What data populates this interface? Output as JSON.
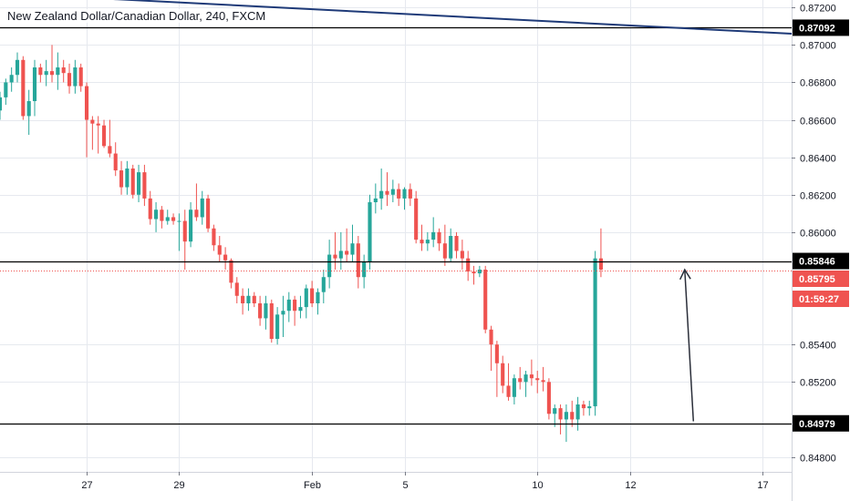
{
  "header": {
    "title": "New Zealand Dollar/Canadian Dollar, 240, FXCM"
  },
  "colors": {
    "bull": "#26a69a",
    "bear": "#ef5350",
    "grid": "#e6e9ef",
    "trendline": "#1e3a78",
    "arrow": "#2a2e39",
    "current": "#ef5350"
  },
  "chart_data": {
    "type": "candlestick",
    "y_range": [
      0.8472,
      0.8724
    ],
    "x_range": [
      0,
      137
    ],
    "y_ticks": [
      {
        "value": 0.872,
        "label": "0.87200"
      },
      {
        "value": 0.87,
        "label": "0.87000"
      },
      {
        "value": 0.868,
        "label": "0.86800"
      },
      {
        "value": 0.866,
        "label": "0.86600"
      },
      {
        "value": 0.864,
        "label": "0.86400"
      },
      {
        "value": 0.862,
        "label": "0.86200"
      },
      {
        "value": 0.86,
        "label": "0.86000"
      },
      {
        "value": 0.854,
        "label": "0.85400"
      },
      {
        "value": 0.852,
        "label": "0.85200"
      },
      {
        "value": 0.848,
        "label": "0.84800"
      }
    ],
    "x_ticks": [
      {
        "index": 15,
        "label": "27"
      },
      {
        "index": 31,
        "label": "29"
      },
      {
        "index": 54,
        "label": "Feb"
      },
      {
        "index": 70,
        "label": "5"
      },
      {
        "index": 93,
        "label": "10"
      },
      {
        "index": 109,
        "label": "12"
      },
      {
        "index": 132,
        "label": "17"
      }
    ],
    "levels": [
      {
        "value": 0.87092,
        "label": "0.87092"
      },
      {
        "value": 0.85846,
        "label": "0.85846"
      },
      {
        "value": 0.84979,
        "label": "0.84979"
      }
    ],
    "current_price": {
      "value": 0.85795,
      "label": "0.85795",
      "countdown": "01:59:27"
    },
    "trendline": {
      "x1": 10,
      "y1": 0.8726,
      "x2": 137,
      "y2": 0.8706
    },
    "arrow": {
      "x1": 120,
      "y1": 0.8499,
      "x2": 118.5,
      "y2": 0.858
    },
    "candles": [
      [
        0.8665,
        0.8675,
        0.866,
        0.8672
      ],
      [
        0.8672,
        0.8682,
        0.8668,
        0.868
      ],
      [
        0.868,
        0.8688,
        0.8675,
        0.8684
      ],
      [
        0.8684,
        0.8696,
        0.868,
        0.8692
      ],
      [
        0.8692,
        0.8694,
        0.866,
        0.8662
      ],
      [
        0.8662,
        0.8676,
        0.8652,
        0.867
      ],
      [
        0.867,
        0.8692,
        0.8662,
        0.8688
      ],
      [
        0.8688,
        0.869,
        0.868,
        0.8684
      ],
      [
        0.8684,
        0.8692,
        0.8678,
        0.8686
      ],
      [
        0.8686,
        0.87,
        0.868,
        0.8684
      ],
      [
        0.8684,
        0.8696,
        0.8676,
        0.8688
      ],
      [
        0.8688,
        0.8692,
        0.868,
        0.8685
      ],
      [
        0.8685,
        0.869,
        0.8674,
        0.8678
      ],
      [
        0.8678,
        0.8692,
        0.8674,
        0.8688
      ],
      [
        0.8688,
        0.869,
        0.8675,
        0.8678
      ],
      [
        0.8678,
        0.868,
        0.864,
        0.866
      ],
      [
        0.866,
        0.8662,
        0.8644,
        0.8658
      ],
      [
        0.8658,
        0.8662,
        0.8642,
        0.8657
      ],
      [
        0.8657,
        0.866,
        0.8645,
        0.8646
      ],
      [
        0.8646,
        0.866,
        0.864,
        0.8642
      ],
      [
        0.8642,
        0.8648,
        0.863,
        0.8633
      ],
      [
        0.8633,
        0.8638,
        0.862,
        0.8624
      ],
      [
        0.8624,
        0.8638,
        0.862,
        0.8634
      ],
      [
        0.8634,
        0.8636,
        0.8618,
        0.862
      ],
      [
        0.862,
        0.8636,
        0.8616,
        0.8632
      ],
      [
        0.8632,
        0.8636,
        0.8614,
        0.8618
      ],
      [
        0.8618,
        0.8622,
        0.8604,
        0.8607
      ],
      [
        0.8607,
        0.8616,
        0.86,
        0.8612
      ],
      [
        0.8612,
        0.8614,
        0.8602,
        0.8606
      ],
      [
        0.8606,
        0.8612,
        0.8604,
        0.8608
      ],
      [
        0.8608,
        0.861,
        0.8604,
        0.8606
      ],
      [
        0.8606,
        0.861,
        0.859,
        0.8606
      ],
      [
        0.8606,
        0.8612,
        0.858,
        0.8595
      ],
      [
        0.8595,
        0.8616,
        0.8592,
        0.8612
      ],
      [
        0.8612,
        0.8626,
        0.8606,
        0.8608
      ],
      [
        0.8608,
        0.8622,
        0.8604,
        0.8618
      ],
      [
        0.8618,
        0.862,
        0.86,
        0.8602
      ],
      [
        0.8602,
        0.8604,
        0.859,
        0.8593
      ],
      [
        0.8593,
        0.8598,
        0.8584,
        0.8588
      ],
      [
        0.8588,
        0.8592,
        0.858,
        0.8585
      ],
      [
        0.8585,
        0.8586,
        0.857,
        0.8573
      ],
      [
        0.8573,
        0.8576,
        0.8562,
        0.8566
      ],
      [
        0.8566,
        0.857,
        0.8556,
        0.8562
      ],
      [
        0.8562,
        0.857,
        0.8558,
        0.8566
      ],
      [
        0.8566,
        0.8568,
        0.856,
        0.8562
      ],
      [
        0.8562,
        0.8566,
        0.855,
        0.8554
      ],
      [
        0.8554,
        0.8566,
        0.8548,
        0.8562
      ],
      [
        0.8562,
        0.8564,
        0.8541,
        0.8543
      ],
      [
        0.8543,
        0.856,
        0.854,
        0.8556
      ],
      [
        0.8556,
        0.8566,
        0.8544,
        0.8558
      ],
      [
        0.8558,
        0.8568,
        0.8552,
        0.8564
      ],
      [
        0.8564,
        0.8566,
        0.855,
        0.8558
      ],
      [
        0.8558,
        0.8566,
        0.8554,
        0.856
      ],
      [
        0.856,
        0.8572,
        0.8554,
        0.857
      ],
      [
        0.857,
        0.8574,
        0.856,
        0.8562
      ],
      [
        0.8562,
        0.857,
        0.8556,
        0.8568
      ],
      [
        0.8568,
        0.858,
        0.8562,
        0.8576
      ],
      [
        0.8576,
        0.8596,
        0.857,
        0.8588
      ],
      [
        0.8588,
        0.86,
        0.858,
        0.8586
      ],
      [
        0.8586,
        0.86,
        0.858,
        0.859
      ],
      [
        0.859,
        0.8602,
        0.8584,
        0.8588
      ],
      [
        0.8588,
        0.8604,
        0.8584,
        0.8594
      ],
      [
        0.8594,
        0.8598,
        0.857,
        0.8576
      ],
      [
        0.8576,
        0.8588,
        0.857,
        0.8584
      ],
      [
        0.8584,
        0.862,
        0.858,
        0.8616
      ],
      [
        0.8616,
        0.8626,
        0.861,
        0.8618
      ],
      [
        0.8618,
        0.8634,
        0.8612,
        0.8622
      ],
      [
        0.8622,
        0.8632,
        0.8614,
        0.862
      ],
      [
        0.862,
        0.8628,
        0.8616,
        0.8623
      ],
      [
        0.8623,
        0.8626,
        0.8614,
        0.8618
      ],
      [
        0.8618,
        0.8624,
        0.8612,
        0.8623
      ],
      [
        0.8623,
        0.8626,
        0.8614,
        0.8618
      ],
      [
        0.8618,
        0.8622,
        0.8594,
        0.8596
      ],
      [
        0.8596,
        0.8604,
        0.859,
        0.8594
      ],
      [
        0.8594,
        0.86,
        0.859,
        0.8596
      ],
      [
        0.8596,
        0.8608,
        0.8592,
        0.86
      ],
      [
        0.86,
        0.8602,
        0.859,
        0.8594
      ],
      [
        0.8594,
        0.8604,
        0.8582,
        0.8586
      ],
      [
        0.8586,
        0.8602,
        0.8584,
        0.8598
      ],
      [
        0.8598,
        0.86,
        0.8586,
        0.859
      ],
      [
        0.859,
        0.8596,
        0.858,
        0.8586
      ],
      [
        0.8586,
        0.859,
        0.8574,
        0.8579
      ],
      [
        0.8579,
        0.8582,
        0.8572,
        0.8578
      ],
      [
        0.8578,
        0.8582,
        0.8576,
        0.858
      ],
      [
        0.858,
        0.8582,
        0.8546,
        0.8548
      ],
      [
        0.8548,
        0.855,
        0.8526,
        0.854
      ],
      [
        0.854,
        0.8542,
        0.8512,
        0.853
      ],
      [
        0.853,
        0.8534,
        0.8514,
        0.8518
      ],
      [
        0.8518,
        0.853,
        0.851,
        0.8512
      ],
      [
        0.8512,
        0.8524,
        0.8508,
        0.8522
      ],
      [
        0.8522,
        0.8528,
        0.8516,
        0.852
      ],
      [
        0.852,
        0.8526,
        0.8512,
        0.8524
      ],
      [
        0.8524,
        0.8532,
        0.8518,
        0.8522
      ],
      [
        0.8522,
        0.8526,
        0.8514,
        0.8521
      ],
      [
        0.8521,
        0.8528,
        0.8515,
        0.852
      ],
      [
        0.852,
        0.8522,
        0.85,
        0.8503
      ],
      [
        0.8503,
        0.8508,
        0.8496,
        0.8506
      ],
      [
        0.8506,
        0.8508,
        0.8492,
        0.85
      ],
      [
        0.85,
        0.8508,
        0.8488,
        0.8504
      ],
      [
        0.8504,
        0.851,
        0.8496,
        0.85
      ],
      [
        0.85,
        0.8512,
        0.8494,
        0.8508
      ],
      [
        0.8508,
        0.851,
        0.8502,
        0.8506
      ],
      [
        0.8506,
        0.851,
        0.8502,
        0.8507
      ],
      [
        0.8507,
        0.859,
        0.8502,
        0.8586
      ],
      [
        0.8586,
        0.8602,
        0.8576,
        0.858
      ]
    ]
  }
}
